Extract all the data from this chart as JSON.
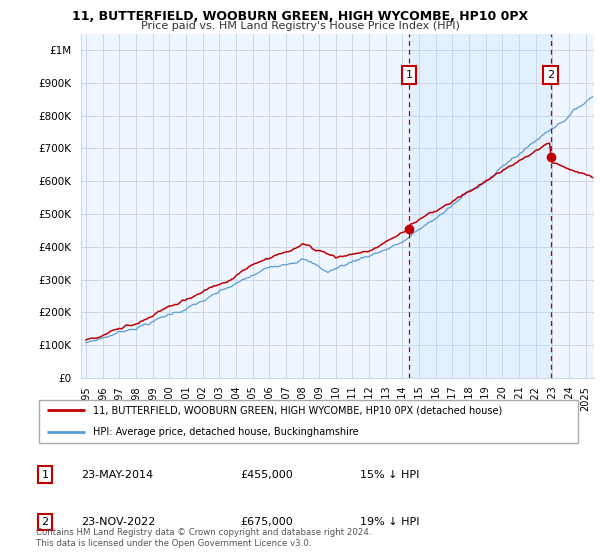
{
  "title": "11, BUTTERFIELD, WOOBURN GREEN, HIGH WYCOMBE, HP10 0PX",
  "subtitle": "Price paid vs. HM Land Registry's House Price Index (HPI)",
  "ylabel_ticks": [
    "£0",
    "£100K",
    "£200K",
    "£300K",
    "£400K",
    "£500K",
    "£600K",
    "£700K",
    "£800K",
    "£900K",
    "£1M"
  ],
  "ytick_values": [
    0,
    100000,
    200000,
    300000,
    400000,
    500000,
    600000,
    700000,
    800000,
    900000,
    1000000
  ],
  "ylim": [
    0,
    1050000
  ],
  "xlim_start": 1994.7,
  "xlim_end": 2025.5,
  "hpi_color": "#5b9bd5",
  "price_color": "#c00000",
  "sale1_x": 2014.39,
  "sale1_y": 455000,
  "sale2_x": 2022.9,
  "sale2_y": 675000,
  "vline_color": "#c00000",
  "shaded_bg_color": "#ddeeff",
  "plot_bg_color": "#f0f6ff",
  "legend_label1": "11, BUTTERFIELD, WOOBURN GREEN, HIGH WYCOMBE, HP10 0PX (detached house)",
  "legend_label2": "HPI: Average price, detached house, Buckinghamshire",
  "table_row1": [
    "1",
    "23-MAY-2014",
    "£455,000",
    "15% ↓ HPI"
  ],
  "table_row2": [
    "2",
    "23-NOV-2022",
    "£675,000",
    "19% ↓ HPI"
  ],
  "footer": "Contains HM Land Registry data © Crown copyright and database right 2024.\nThis data is licensed under the Open Government Licence v3.0.",
  "background_color": "#ffffff",
  "grid_color": "#c8d8e8"
}
